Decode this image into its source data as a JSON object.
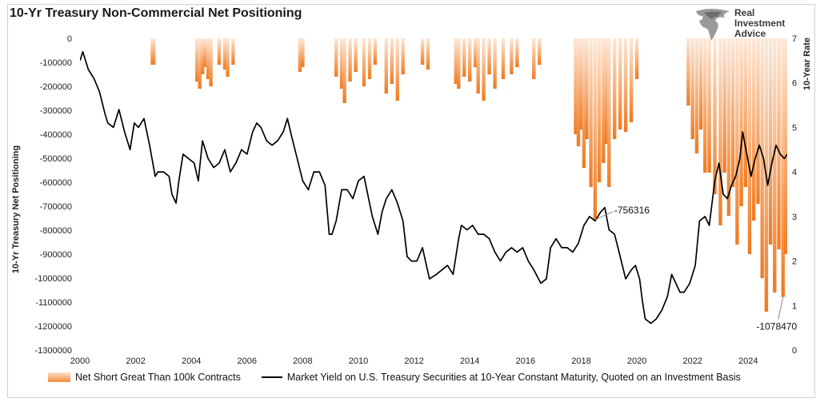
{
  "title": "10-Yr Treasury Non-Commercial Net Positioning",
  "logo": {
    "line1": "Real",
    "line2": "Investment",
    "line3": "Advice"
  },
  "colors": {
    "bars_dark": "#f07a20",
    "bars_light": "#fde8d8",
    "line": "#000000"
  },
  "chart_data": {
    "type": "line",
    "title": "10-Yr Treasury Non-Commercial Net Positioning",
    "ylabel_left": "10-Yr Treasury Net Positioning",
    "ylabel_right": "10-Year Rate",
    "x_range": [
      2000,
      2025.4
    ],
    "x_ticks": [
      "2000",
      "2002",
      "2004",
      "2006",
      "2008",
      "2010",
      "2012",
      "2014",
      "2016",
      "2018",
      "2020",
      "2022",
      "2024"
    ],
    "ylim_left": [
      -1300000,
      0
    ],
    "y_ticks_left": [
      "0",
      "-100000",
      "-200000",
      "-300000",
      "-400000",
      "-500000",
      "-600000",
      "-700000",
      "-800000",
      "-900000",
      "-1000000",
      "-1100000",
      "-1200000",
      "-1300000"
    ],
    "ylim_right": [
      0,
      7
    ],
    "y_ticks_right": [
      "0",
      "1",
      "2",
      "3",
      "4",
      "5",
      "6",
      "7"
    ],
    "grid": false,
    "series": [
      {
        "name": "Net Short Great Than 100k Contracts",
        "kind": "area",
        "axis": "left",
        "x": [
          2002.6,
          2002.65,
          2004.2,
          2004.3,
          2004.4,
          2004.5,
          2004.6,
          2004.7,
          2005.0,
          2005.2,
          2005.3,
          2005.5,
          2007.9,
          2008.0,
          2009.2,
          2009.4,
          2009.5,
          2009.7,
          2009.9,
          2010.2,
          2010.4,
          2010.6,
          2011.0,
          2011.2,
          2011.4,
          2011.6,
          2012.3,
          2012.5,
          2013.5,
          2013.6,
          2013.8,
          2014.0,
          2014.2,
          2014.3,
          2014.5,
          2014.7,
          2014.9,
          2015.2,
          2015.5,
          2015.7,
          2016.3,
          2016.5,
          2017.8,
          2017.9,
          2018.0,
          2018.1,
          2018.2,
          2018.35,
          2018.5,
          2018.65,
          2018.8,
          2018.9,
          2019.0,
          2019.2,
          2019.4,
          2019.6,
          2019.8,
          2020.0,
          2021.85,
          2022.0,
          2022.15,
          2022.3,
          2022.45,
          2022.6,
          2022.8,
          2023.0,
          2023.15,
          2023.3,
          2023.45,
          2023.6,
          2023.75,
          2023.9,
          2024.05,
          2024.2,
          2024.35,
          2024.5,
          2024.65,
          2024.8,
          2024.95,
          2025.1,
          2025.25,
          2025.35
        ],
        "values": [
          -110000,
          -110000,
          -180000,
          -210000,
          -150000,
          -120000,
          -170000,
          -200000,
          -110000,
          -130000,
          -160000,
          -110000,
          -140000,
          -120000,
          -160000,
          -210000,
          -270000,
          -180000,
          -140000,
          -200000,
          -170000,
          -110000,
          -230000,
          -190000,
          -260000,
          -150000,
          -110000,
          -130000,
          -190000,
          -210000,
          -160000,
          -180000,
          -120000,
          -230000,
          -260000,
          -150000,
          -210000,
          -170000,
          -150000,
          -120000,
          -170000,
          -110000,
          -400000,
          -450000,
          -380000,
          -540000,
          -420000,
          -620000,
          -756316,
          -600000,
          -520000,
          -440000,
          -620000,
          -420000,
          -380000,
          -390000,
          -350000,
          -170000,
          -280000,
          -420000,
          -480000,
          -380000,
          -560000,
          -560000,
          -650000,
          -780000,
          -560000,
          -740000,
          -620000,
          -860000,
          -700000,
          -620000,
          -900000,
          -760000,
          -690000,
          -1000000,
          -1140000,
          -860000,
          -1060000,
          -880000,
          -1078470,
          -900000
        ]
      },
      {
        "name": "Market Yield on U.S. Treasury Securities at 10-Year Constant Maturity, Quoted on an Investment Basis",
        "kind": "line",
        "axis": "right",
        "x": [
          2000.0,
          2000.1,
          2000.3,
          2000.5,
          2000.7,
          2000.9,
          2001.0,
          2001.2,
          2001.4,
          2001.6,
          2001.8,
          2001.95,
          2002.1,
          2002.3,
          2002.5,
          2002.7,
          2002.8,
          2003.0,
          2003.2,
          2003.3,
          2003.45,
          2003.55,
          2003.7,
          2003.9,
          2004.1,
          2004.25,
          2004.4,
          2004.6,
          2004.8,
          2005.0,
          2005.2,
          2005.4,
          2005.6,
          2005.8,
          2006.0,
          2006.2,
          2006.35,
          2006.5,
          2006.7,
          2006.9,
          2007.1,
          2007.3,
          2007.45,
          2007.6,
          2007.8,
          2008.0,
          2008.2,
          2008.4,
          2008.6,
          2008.8,
          2008.95,
          2009.05,
          2009.2,
          2009.4,
          2009.6,
          2009.8,
          2010.0,
          2010.2,
          2010.3,
          2010.5,
          2010.7,
          2010.85,
          2011.0,
          2011.2,
          2011.4,
          2011.6,
          2011.75,
          2011.9,
          2012.1,
          2012.3,
          2012.55,
          2012.8,
          2013.0,
          2013.2,
          2013.4,
          2013.6,
          2013.7,
          2013.9,
          2014.1,
          2014.3,
          2014.5,
          2014.7,
          2014.9,
          2015.1,
          2015.3,
          2015.5,
          2015.7,
          2015.9,
          2016.1,
          2016.3,
          2016.55,
          2016.75,
          2016.9,
          2017.1,
          2017.3,
          2017.5,
          2017.7,
          2017.9,
          2018.1,
          2018.3,
          2018.5,
          2018.7,
          2018.85,
          2019.0,
          2019.2,
          2019.4,
          2019.6,
          2019.8,
          2019.95,
          2020.1,
          2020.2,
          2020.3,
          2020.5,
          2020.7,
          2020.9,
          2021.1,
          2021.25,
          2021.4,
          2021.55,
          2021.7,
          2021.9,
          2022.1,
          2022.25,
          2022.45,
          2022.6,
          2022.8,
          2022.95,
          2023.1,
          2023.25,
          2023.4,
          2023.55,
          2023.7,
          2023.8,
          2023.95,
          2024.1,
          2024.25,
          2024.4,
          2024.55,
          2024.7,
          2024.85,
          2025.0,
          2025.15,
          2025.3,
          2025.4
        ],
        "values": [
          6.5,
          6.7,
          6.3,
          6.1,
          5.8,
          5.3,
          5.1,
          5.0,
          5.4,
          4.9,
          4.5,
          5.1,
          5.0,
          5.2,
          4.6,
          3.9,
          4.0,
          4.0,
          3.9,
          3.5,
          3.3,
          3.8,
          4.4,
          4.3,
          4.2,
          3.8,
          4.7,
          4.3,
          4.1,
          4.2,
          4.5,
          4.0,
          4.2,
          4.5,
          4.4,
          4.9,
          5.1,
          5.0,
          4.7,
          4.6,
          4.7,
          4.9,
          5.2,
          4.8,
          4.3,
          3.8,
          3.6,
          4.0,
          4.0,
          3.7,
          2.6,
          2.6,
          2.9,
          3.6,
          3.6,
          3.4,
          3.8,
          3.9,
          3.6,
          3.0,
          2.6,
          3.1,
          3.4,
          3.6,
          3.3,
          2.9,
          2.1,
          2.0,
          2.0,
          2.3,
          1.6,
          1.7,
          1.8,
          1.9,
          1.7,
          2.5,
          2.8,
          2.7,
          2.8,
          2.6,
          2.6,
          2.5,
          2.2,
          2.0,
          2.2,
          2.3,
          2.2,
          2.3,
          2.0,
          1.8,
          1.5,
          1.6,
          2.3,
          2.5,
          2.3,
          2.3,
          2.2,
          2.4,
          2.8,
          3.0,
          2.9,
          3.1,
          3.2,
          2.7,
          2.6,
          2.1,
          1.6,
          1.8,
          1.9,
          1.6,
          1.1,
          0.7,
          0.6,
          0.7,
          0.9,
          1.2,
          1.7,
          1.5,
          1.3,
          1.3,
          1.5,
          1.9,
          2.9,
          3.0,
          2.8,
          3.8,
          4.2,
          3.5,
          3.4,
          3.7,
          3.9,
          4.3,
          4.9,
          4.4,
          3.9,
          4.3,
          4.6,
          4.3,
          3.7,
          4.2,
          4.6,
          4.4,
          4.3,
          4.4
        ]
      }
    ],
    "annotations": [
      {
        "text": "-756316",
        "x": 2018.5,
        "value": -756316
      },
      {
        "text": "-1078470",
        "x": 2025.25,
        "value": -1078470
      }
    ]
  },
  "legend": {
    "item1": "Net Short Great Than 100k Contracts",
    "item2": "Market Yield on U.S. Treasury Securities at 10-Year Constant Maturity, Quoted on an Investment Basis"
  }
}
